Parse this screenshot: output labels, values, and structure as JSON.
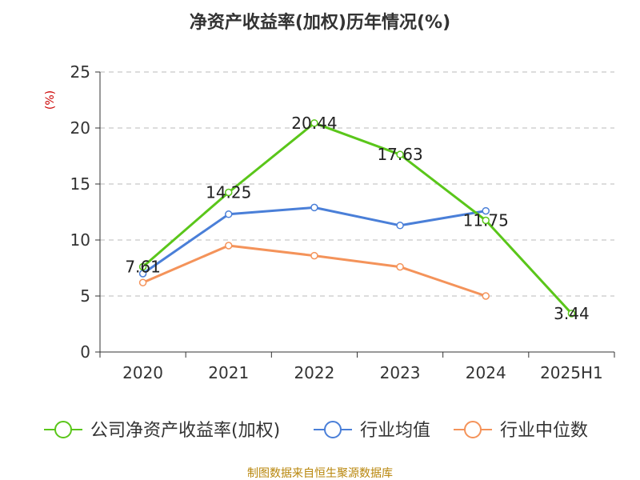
{
  "chart_data": {
    "type": "line",
    "title": "净资产收益率(加权)历年情况(%)",
    "ylabel": "(%)",
    "xlabel": "",
    "categories": [
      "2020",
      "2021",
      "2022",
      "2023",
      "2024",
      "2025H1"
    ],
    "ylim": [
      0,
      25
    ],
    "yticks": [
      "0",
      "5",
      "10",
      "15",
      "20",
      "25"
    ],
    "grid": "horizontal dashed",
    "legend_position": "bottom",
    "series": [
      {
        "name": "公司净资产收益率(加权)",
        "color": "#5ac61a",
        "values": [
          7.61,
          14.25,
          20.44,
          17.63,
          11.75,
          3.44
        ],
        "labels": [
          "7.61",
          "14.25",
          "20.44",
          "17.63",
          "11.75",
          "3.44"
        ]
      },
      {
        "name": "行业均值",
        "color": "#4a7fd8",
        "values": [
          7.0,
          12.3,
          12.9,
          11.3,
          12.6,
          null
        ],
        "labels": []
      },
      {
        "name": "行业中位数",
        "color": "#f4935a",
        "values": [
          6.2,
          9.5,
          8.6,
          7.6,
          5.0,
          null
        ],
        "labels": []
      }
    ]
  },
  "source_text": "制图数据来自恒生聚源数据库"
}
